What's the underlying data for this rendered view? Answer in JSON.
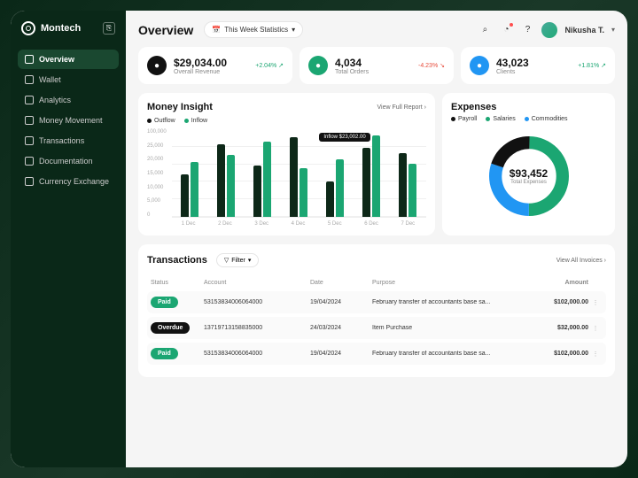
{
  "brand": "Montech",
  "nav": [
    {
      "label": "Overview",
      "active": true
    },
    {
      "label": "Wallet",
      "active": false
    },
    {
      "label": "Analytics",
      "active": false
    },
    {
      "label": "Money Movement",
      "active": false
    },
    {
      "label": "Transactions",
      "active": false
    },
    {
      "label": "Documentation",
      "active": false
    },
    {
      "label": "Currency Exchange",
      "active": false
    }
  ],
  "header": {
    "title": "Overview",
    "stat_selector": "This Week Statistics",
    "user_name": "Nikusha T."
  },
  "kpis": [
    {
      "icon_bg": "#111",
      "value": "$29,034.00",
      "label": "Overall Revenue",
      "change": "+2.04%",
      "dir": "up"
    },
    {
      "icon_bg": "#1ba672",
      "value": "4,034",
      "label": "Total Orders",
      "change": "-4.23%",
      "dir": "down"
    },
    {
      "icon_bg": "#2196f3",
      "value": "43,023",
      "label": "Clients",
      "change": "+1.81%",
      "dir": "up"
    }
  ],
  "insight": {
    "title": "Money Insight",
    "link": "View Full Report",
    "legend": [
      {
        "label": "Outflow",
        "color": "#111"
      },
      {
        "label": "Inflow",
        "color": "#1ba672"
      }
    ],
    "y_ticks": [
      "100,000",
      "25,000",
      "20,000",
      "15,000",
      "10,000",
      "5,000",
      "0"
    ],
    "x_labels": [
      "1 Dec",
      "2 Dec",
      "3 Dec",
      "4 Dec",
      "5 Dec",
      "6 Dec",
      "7 Dec"
    ],
    "series_colors": {
      "outflow": "#0d2818",
      "inflow": "#1ba672"
    },
    "bars": [
      {
        "outflow": 48,
        "inflow": 62
      },
      {
        "outflow": 82,
        "inflow": 70
      },
      {
        "outflow": 58,
        "inflow": 85
      },
      {
        "outflow": 90,
        "inflow": 55
      },
      {
        "outflow": 40,
        "inflow": 65
      },
      {
        "outflow": 78,
        "inflow": 92
      },
      {
        "outflow": 72,
        "inflow": 60
      }
    ],
    "tooltip": "Inflow $23,002.00"
  },
  "expenses": {
    "title": "Expenses",
    "legend": [
      {
        "label": "Payroll",
        "color": "#111"
      },
      {
        "label": "Salaries",
        "color": "#1ba672"
      },
      {
        "label": "Commodities",
        "color": "#2196f3"
      }
    ],
    "total_value": "$93,452",
    "total_label": "Total Expenses",
    "slices": [
      {
        "color": "#1ba672",
        "pct": 50
      },
      {
        "color": "#2196f3",
        "pct": 30
      },
      {
        "color": "#111",
        "pct": 20
      }
    ]
  },
  "transactions": {
    "title": "Transactions",
    "filter_label": "Filter",
    "view_all": "View All Invoices",
    "columns": [
      "Status",
      "Account",
      "Date",
      "Purpose",
      "Amount"
    ],
    "rows": [
      {
        "status": "Paid",
        "status_class": "paid",
        "account": "5315383400606400​0",
        "date": "19/04/2024",
        "purpose": "February transfer of accountants base sa...",
        "amount": "$102,000.00"
      },
      {
        "status": "Overdue",
        "status_class": "overdue",
        "account": "1371971315883500​0",
        "date": "24/03/2024",
        "purpose": "Item Purchase",
        "amount": "$32,000.00"
      },
      {
        "status": "Paid",
        "status_class": "paid",
        "account": "5315383400606400​0",
        "date": "19/04/2024",
        "purpose": "February transfer of accountants base sa...",
        "amount": "$102,000.00"
      }
    ]
  }
}
